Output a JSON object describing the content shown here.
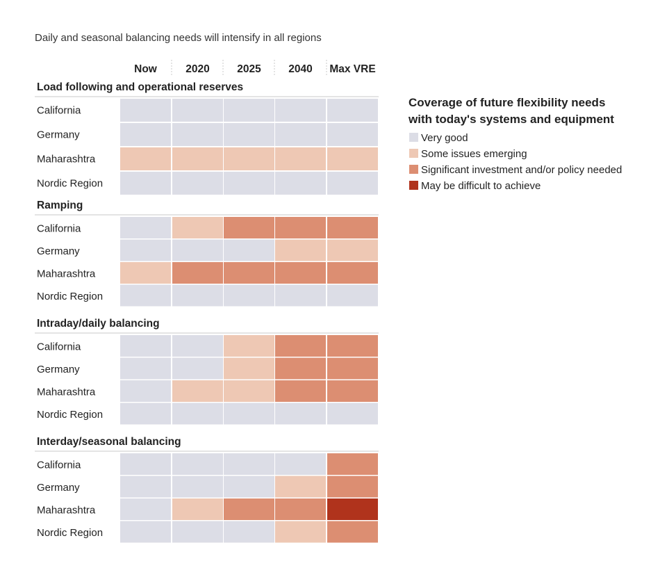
{
  "chart_data": {
    "type": "heatmap",
    "subtitle": "Daily and seasonal balancing needs will intensify in all regions",
    "columns": [
      "Now",
      "2020",
      "2025",
      "2040",
      "Max VRE"
    ],
    "sections": [
      {
        "title": "Load following and operational reserves",
        "rows": [
          {
            "label": "California",
            "levels": [
              0,
              0,
              0,
              0,
              0
            ]
          },
          {
            "label": "Germany",
            "levels": [
              0,
              0,
              0,
              0,
              0
            ]
          },
          {
            "label": "Maharashtra",
            "levels": [
              1,
              1,
              1,
              1,
              1
            ]
          },
          {
            "label": "Nordic Region",
            "levels": [
              0,
              0,
              0,
              0,
              0
            ]
          }
        ]
      },
      {
        "title": "Ramping",
        "rows": [
          {
            "label": "California",
            "levels": [
              0,
              1,
              2,
              2,
              2
            ]
          },
          {
            "label": "Germany",
            "levels": [
              0,
              0,
              0,
              1,
              1
            ]
          },
          {
            "label": "Maharashtra",
            "levels": [
              1,
              2,
              2,
              2,
              2
            ]
          },
          {
            "label": "Nordic Region",
            "levels": [
              0,
              0,
              0,
              0,
              0
            ]
          }
        ]
      },
      {
        "title": "Intraday/daily balancing",
        "rows": [
          {
            "label": "California",
            "levels": [
              0,
              0,
              1,
              2,
              2
            ]
          },
          {
            "label": "Germany",
            "levels": [
              0,
              0,
              1,
              2,
              2
            ]
          },
          {
            "label": "Maharashtra",
            "levels": [
              0,
              1,
              1,
              2,
              2
            ]
          },
          {
            "label": "Nordic Region",
            "levels": [
              0,
              0,
              0,
              0,
              0
            ]
          }
        ]
      },
      {
        "title": "Interday/seasonal balancing",
        "rows": [
          {
            "label": "California",
            "levels": [
              0,
              0,
              0,
              0,
              2
            ]
          },
          {
            "label": "Germany",
            "levels": [
              0,
              0,
              0,
              1,
              2
            ]
          },
          {
            "label": "Maharashtra",
            "levels": [
              0,
              1,
              2,
              2,
              3
            ]
          },
          {
            "label": "Nordic Region",
            "levels": [
              0,
              0,
              0,
              1,
              2
            ]
          }
        ]
      }
    ],
    "legend": {
      "title_lines": [
        "Coverage of future flexibility needs",
        "with today's systems and equipment"
      ],
      "items": [
        {
          "label": "Very good",
          "color": "#dcdde6"
        },
        {
          "label": "Some issues emerging",
          "color": "#eec8b4"
        },
        {
          "label": "Significant investment and/or policy needed",
          "color": "#dc8e72"
        },
        {
          "label": "May be difficult to achieve",
          "color": "#b0331c"
        }
      ]
    }
  }
}
